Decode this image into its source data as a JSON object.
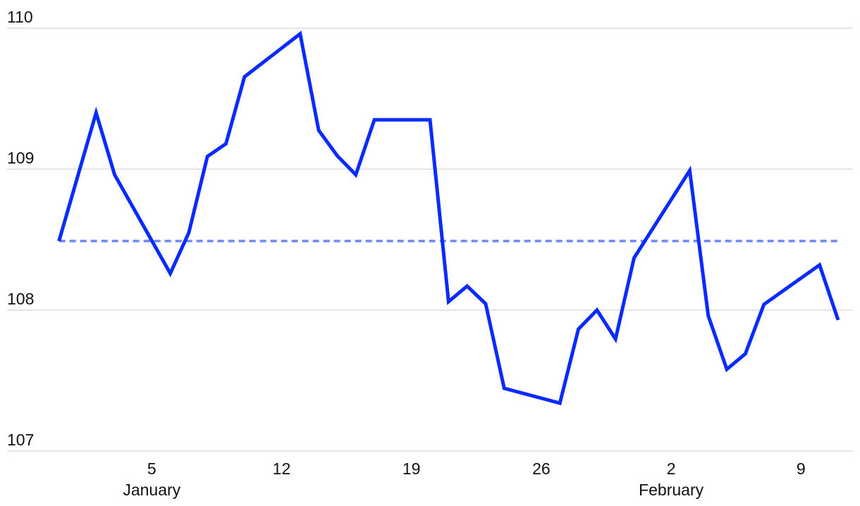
{
  "chart_data": {
    "type": "line",
    "x": [
      0,
      2,
      3,
      6,
      7,
      8,
      9,
      10,
      13,
      14,
      15,
      16,
      17,
      20,
      21,
      22,
      23,
      24,
      27,
      28,
      29,
      30,
      31,
      34,
      35,
      36,
      37,
      38,
      41,
      42
    ],
    "series": [
      {
        "color": "#0a2bff",
        "values": [
          108.49,
          109.4,
          108.96,
          108.26,
          108.55,
          109.09,
          109.18,
          109.655,
          109.96,
          109.275,
          109.095,
          108.96,
          109.35,
          109.35,
          108.06,
          108.17,
          108.045,
          107.445,
          107.34,
          107.865,
          108.0,
          107.795,
          108.37,
          108.99,
          107.96,
          107.58,
          107.69,
          108.04,
          108.32,
          107.93
        ]
      }
    ],
    "reference_line": {
      "value": 108.49,
      "color": "#6f88f5",
      "style": "dashed"
    },
    "xlim": [
      -2.8,
      42.8
    ],
    "xticks": [
      5,
      12,
      19,
      26,
      {
        "value": 33,
        "label": "2"
      },
      {
        "value": 40,
        "label": "9"
      }
    ],
    "month_labels": [
      {
        "value": 5,
        "label": "January"
      },
      {
        "value": 33,
        "label": "February"
      }
    ],
    "ylim": [
      107,
      110
    ],
    "yticks": [
      107,
      108,
      109,
      110
    ],
    "grid": true
  }
}
